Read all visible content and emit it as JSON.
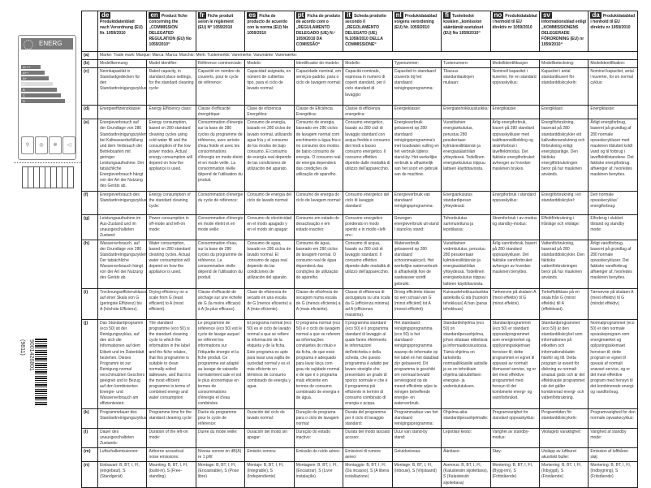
{
  "energy_label": {
    "title": "ENERG",
    "classes": [
      "A+++",
      "A++",
      "A+",
      "A",
      "B",
      "C",
      "D"
    ]
  },
  "barcode": {
    "number": "9001426801",
    "code": "(9811)"
  },
  "columns": [
    {
      "code": "de",
      "header": "Produktdatenblatt nach Verordnung (EU) Nr. 1059/2010"
    },
    {
      "code": "en",
      "header": "Product fiche concerning the „COMMISSION DELEGATED REGULATION (EU) No 1059/2010“"
    },
    {
      "code": "fr",
      "header": "Fiche produit selon le règlement (EU) N° 1059/2010"
    },
    {
      "code": "es",
      "header": "Ficha de producto de acuerdo con la norma (EU) No 1059/2010"
    },
    {
      "code": "pt",
      "header": "Ficha de produto de acordo com o „REGULAMENTO DELEGADO (UE) N.º 1059/2010 DA COMISSÃO“"
    },
    {
      "code": "it",
      "header": "Scheda prodotto secondo il „REGOLAMENTO DELEGATO (UE) N.1059/2010 DELLA COMMISSIONE“"
    },
    {
      "code": "nl",
      "header": "Produktdatablad volgens verordening (EU) Nr. 1059/2010"
    },
    {
      "code": "fi",
      "header": "Tuotetiedot koskien „komission sääntämät asetukset (EU) No 1059/2010“"
    },
    {
      "code": "no",
      "header": "Produktdatablad i henhold til EU direktiv nr 1059/2010"
    },
    {
      "code": "sv",
      "header": "Informationsblad enligt „KOMMISSIONENS DELEGERADE FÖRORDNING (EU) nr 1059/2010“"
    },
    {
      "code": "da",
      "header": "Produktdatablad i henhold til EU direktiv nr 1059/2010"
    }
  ],
  "rows": [
    {
      "label": "(a)",
      "merged": "Marke: Trade mark: Marque: Marca: Marca: Marchio: Merk: Tuotemerkki: Varemerke: Varumärke: Varemærke:"
    },
    {
      "label": "(b)",
      "cells": [
        "Modellkennung:",
        "Model identifier:",
        "Référence commerciale:",
        "Modelo:",
        "Identificador do modelo:",
        "Modello:",
        "Typenummer:",
        "Tuotenumero:",
        "Modellidentifikasjon",
        "Modellbeteckning:",
        "Modelidentifikation:"
      ]
    },
    {
      "label": "(c)",
      "cells": [
        "Nennkapazität in Standardgedecken für den Standardreinigungszyklus:",
        "Rated capacity, in standard place settings, for the standard cleaning cycle:",
        "Capacité en nombre de couverts, pour le cycle de référence:",
        "Capacidad asignada, en número de cubiertos tipo, para el ciclo de lavado normal:",
        "Capacidade nominal, em serviços-padrão, para o ciclo de lavagem normal:",
        "Capacità nominale, espressa in numero di coperti standard, per il ciclo standard di lavaggio:",
        "Capaciteit in standaard couverts bij het standaard reinigingsprogramma:",
        "Tilavuus standardiastiojen mukaan:",
        "Nominell kapasitet i kuverter, for en standard oppvaskyklus:",
        "Kapacitet i antal standardkuvert för standarddiskcykeln:",
        "Nominel kapacitet, antal i kuverter, for en normal cyklus:"
      ]
    },
    {
      "label": "(d)",
      "cells": [
        "Energieeffizienzklasse:",
        "Energy Efficiency class:",
        "Classe d'efficacité énergétique:",
        "Clase de eficiencia Energética:",
        "Classe de Eficiência Energética:",
        "Classe di efficienza energetica:",
        "Energieklasse:",
        "Energiatehokkuusluokka:",
        "Energiklasse:",
        "Energiklass:",
        "Energiklasse:"
      ]
    },
    {
      "label": "(e)",
      "cells": [
        "Energieverbrauch auf der Grundlage von 280 Standardreinigungszyklen bei Kaltwasserbefüllung und dem Verbrauch der Betriebsarten mit geringer Leistungsaufnahme. Der tatsächliche Energieverbrauch hängt von der Art der Nutzung des Geräts ab.",
        "Energy consumption, based on 280 standard cleaning cycles using cold water fill and the consumption of the low power modes. Actual energy consumption will depend on how the appliance is used.",
        "Consommation d'énergie sur la base de 280 cycles du programme de référence, avec arrivée d'eau froide et avec les consommations d'énergie en mode éteint et en mode veille. La consommation réelle dépend de l'utilisation du produit.",
        "Consumo de energía, basado en 280 ciclos de lavado normal, utilizando agua fría y el consumo de los modos de bajo consumo. El consumo de energía real depende de las condiciones de utilización del aparato.",
        "Consumo de energia, baseado em 280 ciclos de lavagem normal com enchimento a água fria e no consumo dos modos de baixo consumo de energia. O consumo real de energia dependerá das condições de utilização do aparelho.",
        "Consumo energetico, basato su 280 cicli di lavaggio standard con acqua fredda e consumo dei modi a basso consumo energetico. Il consumo effettivo dipende dalle modalità di utilizzo dell'apparecchio.",
        "Energieverbruik gebaseerd op 280 standaard reinigingsprogramma's met koudwater vulling en het verbruik tijdens stand-by. Het werkelijke verbruik is afhankelijk van het soort en gebruik van de machine.",
        "Vuosittainen energiankulutus, perustuu 280 pesukertaan kylmävesiliitännän ja energiasäästöilan yhteydessä. Todellinen energiankulutus riippuu laitteen käyttötavoista.",
        "Årlig energiforbruk, basert på 280 standard oppvaskykluser med kaldtvannstilkobling og strømforbruk i laveffektmodus. Det faktiske energiforbruket avhenger av hvordan maskinen brukes.",
        "Energiförbrukning, baserad på 280 standarddiskcykler vid kallvattenanslutning och förbrukning enligt energisparläge. Den faktiska energiförbrukningen beror på hur maskinen används.",
        "Årligt energiforbrug, baseret på grundlag af 280 normale opvaskecykluser med maskinen tilsluttet koldt vand og til forbrug i laveffekttilstandene. Det faktiske energiforbrug afhænger af, hvorledes maskinen benyttes."
      ]
    },
    {
      "label": "(f)",
      "cells": [
        "Energieverbrauch des Standardreinigungszyklus:",
        "Energy consumption of the standard cleaning cycle:",
        "Consommation d'énergie du cycle de référence:",
        "Consumo de energía del ciclo de lavado normal:",
        "Consumo de energia do ciclo de lavagem normal:",
        "Consumo energetico del ciclo di lavaggio standard:",
        "Energieverbruik van standaard reinigingsprogramma:",
        "Energiankulutus standardipesun yhteydessä:",
        "Energiforbruk i standard oppvaskyklus:",
        "Energiförbrukning i en standarddiskcykel:",
        "Den normale opvaskecyklus' energiforbrug:"
      ]
    },
    {
      "label": "(g)",
      "cells": [
        "Leistungsaufnahme im Aus-Zustand und im unausgeschalteten Zustand:",
        "Power consumption in off-mode and left-on mode:",
        "Consommation d'énergie en mode éteint et en mode veille:",
        "Consumo de electricidad en el modo apagado y en el modo sin apagar:",
        "Consumo em estado de desactivação e em estado inactivo:",
        "Consumo energetico ponderato in modo spento e in modo «left-on»:",
        "Gewogen energieverbruik uit-stand / stand-by stand:",
        "Tehonkulutus sammutettuna ja lepotilassa:",
        "Strømforbruk i av-modus og standby-modus:",
        "Effektförbrukning i frånläge och viloläge:",
        "Elforbrug i slukket tilstand og standby mode:"
      ]
    },
    {
      "label": "(h)",
      "cells": [
        "Wasserverbrauch, auf der Grundlage von 280 Standardreinigungszyklen. Der tatsächliche Wasserverbrauch hängt von der Art der Nutzung des Geräts ab.",
        "Water consumption, based on 280 standard cleaning cycles. Actual water consumption will depend on how the appliance is used.",
        "Consommation d'eau, sur la base de 280 cycles du programme de référence. La consommation réelle dépend de l'utilisation du produit.",
        "Consumo de agua, basado en 280 ciclos de lavado normal. El consumo de agua real depende de las condiciones de utilización del aparato.",
        "Consumo de água, baseado em 280 ciclos de lavagem normal. O consumo real de água dependerá das condições de utilização do aparelho.",
        "Consumo di acqua, basato su 280 cicli di lavaggio standard. Il consumo effettivo dipende dalle modalità di utilizzo dell'apparecchio.",
        "Waterverbruik gebaseerd op 280 standaard schoonmaakcycli. Het werkelijke waterverbruik is afhankelijk hoe de vaatwasser wordt gebruikt.",
        "Vuosittainen vedenkulutus, perustuu 280 pesukertaan kylmävesiliitännän ja energiasäästöilan yhteydessä. Todellinen energiankulutus riippuu laitteen käyttötavoista.",
        "Årlig vannforbruk, basert på 280 standard oppvaskykluser. Det faktiske vannforbruket avhenger av hvordan maskinen benyttes.",
        "Vattenförbrukning, baserad på 280 standarddiskcykler. Den faktiska vattenförbrukningen beror på hur maskinen används.",
        "Årligt vandforbrug, baseret på grundlag af 280 normale opvaskecykluser. Det faktiske vandforbrug afhænger af, hvorledes maskinen benyttes."
      ]
    },
    {
      "label": "(i)",
      "cells": [
        "Trocknungseffizienzklasse auf einer Skala von G (geringste Effizienz) bis A (höchste Effizienz).",
        "Drying efficiency on a scale from G (least efficient) to A (most efficient).",
        "Classe d'efficacité de séchage sur une échelle de G (la moins efficace) à A (la plus efficace).",
        "Clase de eficiencia de secado en una escala de G (menos eficiente) a A (más eficiente).",
        "Classe de eficiência de secagem numa escala de G (menos eficiente) a A (mais eficiente).",
        "Classe di efficienza di asciugatura su una scala da G (efficienza minima) ad A (efficienza massima).",
        "Droog efficiënte klasse op een schaal van G (minst efficiënt) tot A (meest efficiënt)",
        "Kuivaustehokkuusluokka asteikolla G:stä (huonoin tehokkuus) A:han (paras tehokkuus)",
        "Tørkeevne på skalaen A (mest effektiv) til G (minst effektiv).",
        "Torkeffektklass på en skala från G (minst effektiv) till A (effektivast).",
        "Tørreevne på skalaen A (mest effektiv) til G (mindst effektiv)."
      ]
    },
    {
      "label": "(j)",
      "cells": [
        "Das Standardprogramm (eco 50) ist der Reinigungszyklus, auf den sich die Informationen auf dem Etikett und im Datenblatt beziehen. Dieses Programm ist zur Reinigung normal verschmutzten Geschirrs geeignet und in Bezug auf den kombinierten Energie- und Wasserverbrauch am effizientesten.",
        "The standard programme (eco 50) is the standard cleaning cycle to which the information in the label and the fiche relates, that this programme is suitable to clean normally soiled tableware, and that it is the most efficient programme in terms of combined energy and water consumption",
        "Le programme de référence (eco 50) est le cycle de lavage auquel se réfèrent les informations sur l'étiquette énergie et la fiche produit. Ce programme est adapté au lavage de vaisselle normalement sale et est le plus économique en termes de consommations d'énergie et d'eau combinées.",
        "El programa normal (eco 50) es el ciclo de lavado normal a que se refiere la información de la etiqueta y de la ficha. Este programa es apto para lavar una vajilla de suciedad normal y es el más eficiente en términos de consumo combinado de energía y agua.",
        "O programa normal (eco 50) é o ciclo de lavagem normal a que se referem as informações constantes do rótulo e da ficha, de que esse programa é adequado para lavar loiça com grau de sujidade normal e de que é o programa mais eficiente em termos de consumo combinado de energia e de água.",
        "Il programma standard (eco 50) è il programma standard di lavaggio al quale fanno riferimento le informazioni dell'etichetta e della scheda, che questo programma è adatto per lavare stoviglie che presentano un grado di sporco normale e che è il programma più efficiente in termini di consumo combinato di energia e acqua.",
        "Het standaard reinigingsprogramma (eco 50) is het standaard-reinigingsprogramma waarop de informatie op het label en het datablad zijn gebaseerd. Dit programma is geschikt om normaal bevuild serviesgoed op de meest efficiënte wijze te reinigen betreffende energie- en waterverbruik.",
        "Standardiohjelma (eco 50) on standardipesuohjelma, johon viitataan etiketissä ja informaatiosivustossa. Tämä ohjelma on tarkoitettu normaalilikaisille astioille ja se on tehokkain ohjelma taloudellisen energian- ja vedenkulutuksen.",
        "Standardprogrammet (eco 50) er standard oppvaskprogrammet som energimerket og opplysningsskjemaet henviser til; dette programmet er egnet til oppvask av normalt tilsmusset servise, og er det mest effektive programmet med hensyn til det kombinerte energi- og vannforbruket.",
        "Standardprogrammet (eco 50) är den standarddiskcykel som informationen på etiketten och informationsbladet hänför sig till. Detta program är avsett för diskning av normalt smutsat gods och är det effektivaste programmet när det gäller kombinerad energi- och vattenförbrukning.",
        "Normalprogrammet (eco 50) er den normale opvaskeprogram som energimærket og oplysningsskemaet henviser til; dette program er egnet til opvask af normalt snavset service, og er det mest effektive program med hensyn til det kombinerede energi- og vandforbrug."
      ]
    },
    {
      "label": "(k)",
      "cells": [
        "Programmdauer des Standardreinigungszyklus:",
        "Programme time for the standard cleaning cycle:",
        "Durée du programme pour le cycle de référence:",
        "Duración del ciclo de lavado normal:",
        "Duração do programa para o ciclo de lavagem normal:",
        "Durata del programma per il ciclo di lavaggio standard:",
        "Programmaduur van het standaard reinigingsprogramma:",
        "Ohjelma-aika standardipesuohjelmalle:",
        "Programvarighet for standard oppvaskyklus:",
        "Programtiden för standarddiskcykeln:",
        "Programvarighed for den normale opvaskecyklus:"
      ]
    },
    {
      "label": "(l)",
      "cells": [
        "Dauer des unausgeschalteten Zustands:",
        "Duration of the left-on mode:",
        "Durée du mode veille:",
        "Duración del modo sin apagar:",
        "Duração do estado inactivo:",
        "Durata del modo lasciato acceso:",
        "Duur van stand-by stand:",
        "Lepotilan kesto:",
        "Varighet av standby-modus:",
        "Vilolägets varaktighet:",
        "Varighed af standby mode:"
      ]
    },
    {
      "label": "(m)",
      "cells": [
        "Luftschallemissionen:",
        "Airborne acoustical noise emissions:",
        "Niveau sonore en dB(A) re 1 pW:",
        "Emisión sonora:",
        "Emissão de ruído aéreo:",
        "Emissioni di rumore aereo:",
        "Geluidsniveau:",
        "Äänitaso:",
        "Støy:",
        "Utsläpp av luftburet akustiskt buller:",
        "Emission af luftbåren støj:"
      ]
    },
    {
      "label": "(n)",
      "cells": [
        "Einbauart: B, BT, I, FI, (eingebaut), S (Standgerät)",
        "Mounting: B, BT, I, FI, (build-in), S (Free-standing)",
        "Montage: B, BT, I, FI, (Encastrable), S (Pose libre)",
        "Montaje: B, BT, I, FI, (Integrable), S (Independiente)",
        "Montagem: B, BT, I, FI, (Encastrar), S (Livre instalação)",
        "Montaggio: B, BT, I, FI, (Da incasso), S (A libera installazione)",
        "Montage: B, BT, I, FI, (Inbouw), S (Vrijstaand)",
        "Asennus: B, BT, I, FI, (Kalusteisiin sijoitettava), S (Kalusteisiin sijoitettava)",
        "Montering: B, BT, I, FI, (Bygg-inn), S (Frittstående)",
        "Montering: B, BT, I, FI, (Inbyggd), S (Fristående)",
        "Montering: B, BT, I, FI, (Indbygning), S (Fritstående)"
      ]
    }
  ]
}
